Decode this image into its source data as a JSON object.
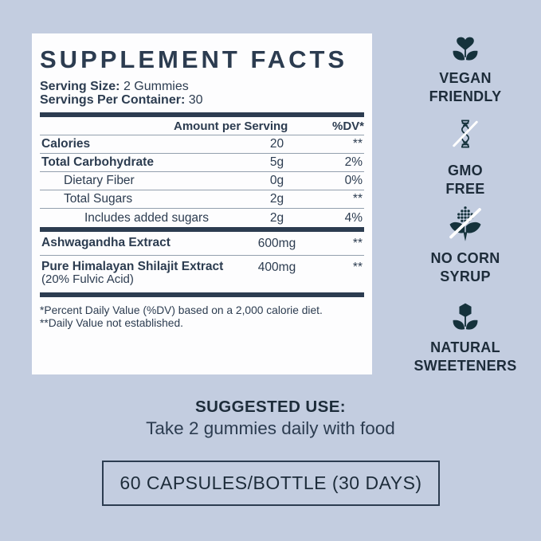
{
  "colors": {
    "background": "#c3cde0",
    "card": "#fdfdfe",
    "navy": "#2c3c50",
    "label": "#1d2c3a",
    "icon": "#15323c",
    "line": "#93a0ae",
    "slash": "#ffffff"
  },
  "panel": {
    "title": "SUPPLEMENT FACTS",
    "serving_size_label": "Serving Size:",
    "serving_size_value": "2 Gummies",
    "servings_per_container_label": "Servings Per Container:",
    "servings_per_container_value": "30",
    "amount_header": "Amount per Serving",
    "dv_header": "%DV*",
    "rows": [
      {
        "label": "Calories",
        "amount": "20",
        "dv": "**",
        "bold": true,
        "indent": 0
      },
      {
        "label": "Total Carbohydrate",
        "amount": "5g",
        "dv": "2%",
        "bold": true,
        "indent": 0
      },
      {
        "label": "Dietary Fiber",
        "amount": "0g",
        "dv": "0%",
        "bold": false,
        "indent": 1
      },
      {
        "label": "Total Sugars",
        "amount": "2g",
        "dv": "**",
        "bold": false,
        "indent": 1
      },
      {
        "label": "Includes added sugars",
        "amount": "2g",
        "dv": "4%",
        "bold": false,
        "indent": 2
      }
    ],
    "extracts": [
      {
        "label": "Ashwagandha Extract",
        "sub": "",
        "amount": "600mg",
        "dv": "**"
      },
      {
        "label": "Pure Himalayan Shilajit Extract",
        "sub": "(20% Fulvic Acid)",
        "amount": "400mg",
        "dv": "**"
      }
    ],
    "footnotes": [
      "*Percent Daily Value (%DV) based on a 2,000 calorie diet.",
      "**Daily Value not established."
    ]
  },
  "badges": [
    {
      "icon": "vegan-plant-heart-icon",
      "lines": [
        "VEGAN",
        "FRIENDLY"
      ]
    },
    {
      "icon": "gmo-free-dna-icon",
      "lines": [
        "GMO",
        "FREE"
      ]
    },
    {
      "icon": "no-corn-icon",
      "lines": [
        "NO CORN",
        "SYRUP"
      ]
    },
    {
      "icon": "natural-sweeteners-plant-icon",
      "lines": [
        "NATURAL",
        "SWEETENERS"
      ]
    }
  ],
  "suggested_use": {
    "heading": "SUGGESTED USE:",
    "text": "Take 2 gummies daily with food"
  },
  "quantity_box": {
    "text": "60 CAPSULES/BOTTLE (30 DAYS)"
  }
}
